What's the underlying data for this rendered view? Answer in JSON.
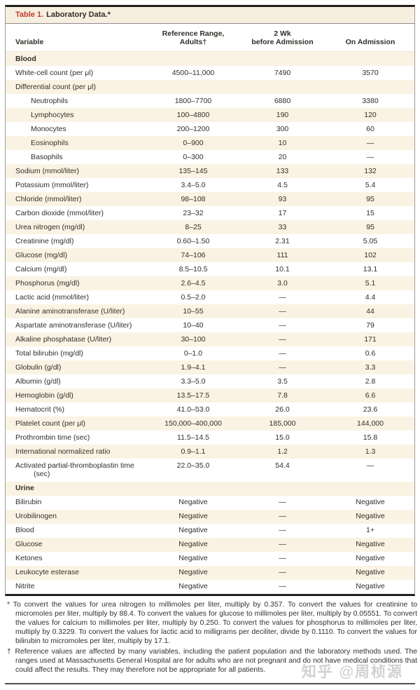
{
  "title": {
    "number": "Table 1.",
    "text": "Laboratory Data.*"
  },
  "header": {
    "variable": "Variable",
    "ref_range_line1": "Reference Range,",
    "ref_range_line2": "Adults†",
    "wk_line1": "2 Wk",
    "wk_line2": "before Admission",
    "on_admission": "On Admission"
  },
  "table": {
    "rows": [
      {
        "section": true,
        "label": "Blood",
        "ref": "",
        "wk2": "",
        "adm": ""
      },
      {
        "label": "White-cell count (per μl)",
        "ref": "4500–11,000",
        "wk2": "7490",
        "adm": "3570"
      },
      {
        "label": "Differential count (per μl)",
        "ref": "",
        "wk2": "",
        "adm": ""
      },
      {
        "label": "Neutrophils",
        "indent": true,
        "ref": "1800–7700",
        "wk2": "6880",
        "adm": "3380"
      },
      {
        "label": "Lymphocytes",
        "indent": true,
        "ref": "100–4800",
        "wk2": "190",
        "adm": "120"
      },
      {
        "label": "Monocytes",
        "indent": true,
        "ref": "200–1200",
        "wk2": "300",
        "adm": "60"
      },
      {
        "label": "Eosinophils",
        "indent": true,
        "ref": "0–900",
        "wk2": "10",
        "adm": "—"
      },
      {
        "label": "Basophils",
        "indent": true,
        "ref": "0–300",
        "wk2": "20",
        "adm": "—"
      },
      {
        "label": "Sodium (mmol/liter)",
        "ref": "135–145",
        "wk2": "133",
        "adm": "132"
      },
      {
        "label": "Potassium (mmol/liter)",
        "ref": "3.4–5.0",
        "wk2": "4.5",
        "adm": "5.4"
      },
      {
        "label": "Chloride (mmol/liter)",
        "ref": "98–108",
        "wk2": "93",
        "adm": "95"
      },
      {
        "label": "Carbon dioxide (mmol/liter)",
        "ref": "23–32",
        "wk2": "17",
        "adm": "15"
      },
      {
        "label": "Urea nitrogen (mg/dl)",
        "ref": "8–25",
        "wk2": "33",
        "adm": "95"
      },
      {
        "label": "Creatinine (mg/dl)",
        "ref": "0.60–1.50",
        "wk2": "2.31",
        "adm": "5.05"
      },
      {
        "label": "Glucose (mg/dl)",
        "ref": "74–106",
        "wk2": "111",
        "adm": "102"
      },
      {
        "label": "Calcium (mg/dl)",
        "ref": "8.5–10.5",
        "wk2": "10.1",
        "adm": "13.1"
      },
      {
        "label": "Phosphorus (mg/dl)",
        "ref": "2.6–4.5",
        "wk2": "3.0",
        "adm": "5.1"
      },
      {
        "label": "Lactic acid (mmol/liter)",
        "ref": "0.5–2.0",
        "wk2": "—",
        "adm": "4.4"
      },
      {
        "label": "Alanine aminotransferase (U/liter)",
        "ref": "10–55",
        "wk2": "—",
        "adm": "44"
      },
      {
        "label": "Aspartate aminotransferase (U/liter)",
        "ref": "10–40",
        "wk2": "—",
        "adm": "79"
      },
      {
        "label": "Alkaline phosphatase (U/liter)",
        "ref": "30–100",
        "wk2": "—",
        "adm": "171"
      },
      {
        "label": "Total bilirubin (mg/dl)",
        "ref": "0–1.0",
        "wk2": "—",
        "adm": "0.6"
      },
      {
        "label": "Globulin (g/dl)",
        "ref": "1.9–4.1",
        "wk2": "—",
        "adm": "3.3"
      },
      {
        "label": "Albumin (g/dl)",
        "ref": "3.3–5.0",
        "wk2": "3.5",
        "adm": "2.8"
      },
      {
        "label": "Hemoglobin (g/dl)",
        "ref": "13.5–17.5",
        "wk2": "7.8",
        "adm": "6.6"
      },
      {
        "label": "Hematocrit (%)",
        "ref": "41.0–53.0",
        "wk2": "26.0",
        "adm": "23.6"
      },
      {
        "label": "Platelet count (per μl)",
        "ref": "150,000–400,000",
        "wk2": "185,000",
        "adm": "144,000"
      },
      {
        "label": "Prothrombin time (sec)",
        "ref": "11.5–14.5",
        "wk2": "15.0",
        "adm": "15.8"
      },
      {
        "label": "International normalized ratio",
        "ref": "0.9–1.1",
        "wk2": "1.2",
        "adm": "1.3"
      },
      {
        "label": "Activated partial-thromboplastin time (sec)",
        "ref": "22.0–35.0",
        "wk2": "54.4",
        "adm": "—"
      },
      {
        "section": true,
        "label": "Urine",
        "ref": "",
        "wk2": "",
        "adm": ""
      },
      {
        "label": "Bilirubin",
        "ref": "Negative",
        "wk2": "—",
        "adm": "Negative"
      },
      {
        "label": "Urobilinogen",
        "ref": "Negative",
        "wk2": "—",
        "adm": "Negative"
      },
      {
        "label": "Blood",
        "ref": "Negative",
        "wk2": "—",
        "adm": "1+"
      },
      {
        "label": "Glucose",
        "ref": "Negative",
        "wk2": "—",
        "adm": "Negative"
      },
      {
        "label": "Ketones",
        "ref": "Negative",
        "wk2": "—",
        "adm": "Negative"
      },
      {
        "label": "Leukocyte esterase",
        "ref": "Negative",
        "wk2": "—",
        "adm": "Negative"
      },
      {
        "label": "Nitrite",
        "ref": "Negative",
        "wk2": "—",
        "adm": "Negative"
      }
    ]
  },
  "footnotes": [
    {
      "marker": "*",
      "text": "To convert the values for urea nitrogen to millimoles per liter, multiply by 0.357. To convert the values for creatinine to micromoles per liter, multiply by 88.4. To convert the values for glucose to millimoles per liter, multiply by 0.05551. To convert the values for calcium to millimoles per liter, multiply by 0.250. To convert the values for phosphorus to millimoles per liter, multiply by 0.3229. To convert the values for lactic acid to milligrams per deciliter, divide by 0.1110. To convert the values for bilirubin to micromoles per liter, multiply by 17.1."
    },
    {
      "marker": "†",
      "text": "Reference values are affected by many variables, including the patient population and the laboratory methods used. The ranges used at Massachusetts General Hospital are for adults who are not pregnant and do not have medical conditions that could affect the results. They may therefore not be appropriate for all patients."
    }
  ],
  "watermark": "知乎 @周桢源",
  "colors": {
    "accent_red": "#c23b2c",
    "band_beige": "#faf3e4",
    "titlebar_cream": "#f6efdf",
    "border_dark": "#231f1c",
    "border_gray": "#9b9b9b"
  }
}
